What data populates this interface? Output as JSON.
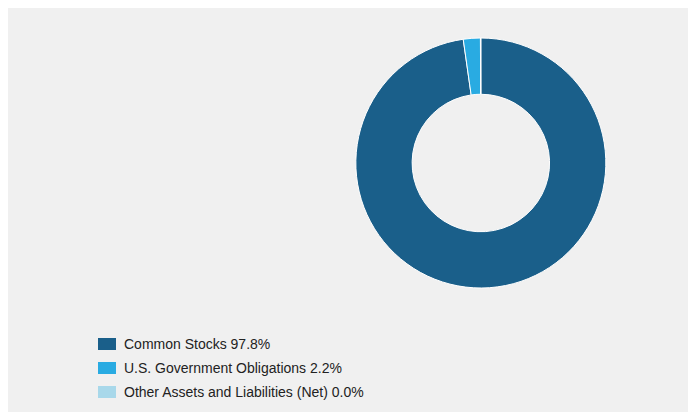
{
  "chart_data": {
    "type": "pie",
    "categories": [
      "Common Stocks 97.8%",
      "U.S. Government Obligations 2.2%",
      "Other Assets and Liabilities (Net) 0.0%"
    ],
    "values": [
      97.8,
      2.2,
      0.05
    ],
    "colors": [
      "#1a5f8a",
      "#29abe2",
      "#a8d8ea"
    ],
    "legend": "lower left"
  }
}
